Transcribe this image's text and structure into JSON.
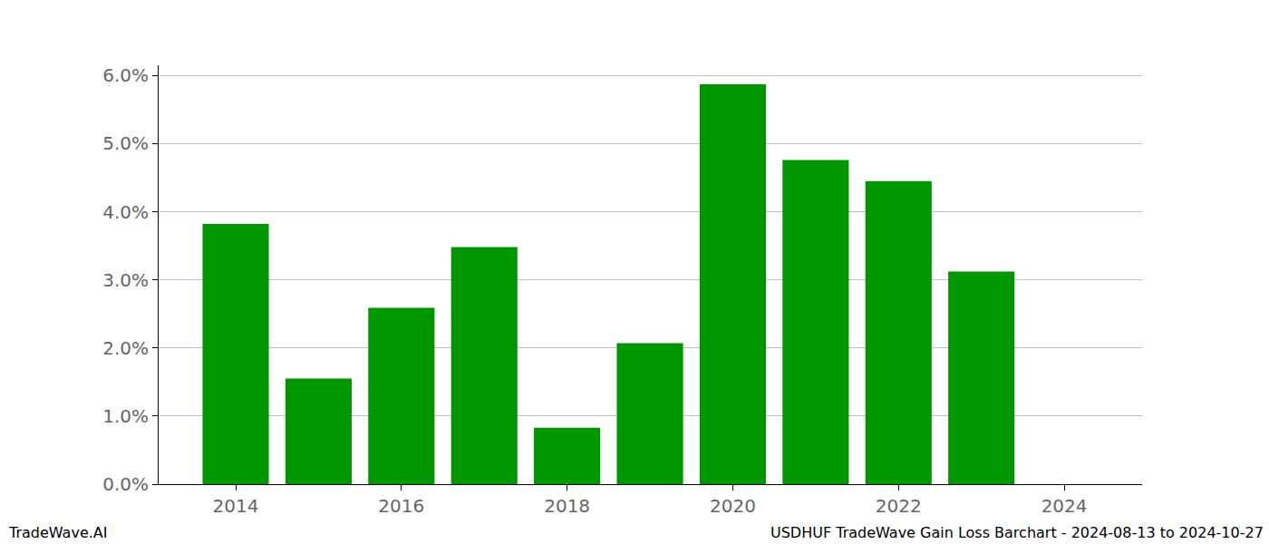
{
  "chart_data": {
    "type": "bar",
    "x": [
      2014,
      2015,
      2016,
      2017,
      2018,
      2019,
      2020,
      2021,
      2022,
      2023
    ],
    "values": [
      3.82,
      1.55,
      2.59,
      3.48,
      0.83,
      2.07,
      5.87,
      4.76,
      4.45,
      3.12
    ],
    "color": "#009600",
    "xlim": [
      2013.07,
      2024.94
    ],
    "xticks": [
      2014,
      2016,
      2018,
      2020,
      2022,
      2024
    ],
    "ylim": [
      0,
      6.15
    ],
    "yticks": [
      {
        "value": 0,
        "label": "0.0%"
      },
      {
        "value": 1,
        "label": "1.0%"
      },
      {
        "value": 2,
        "label": "2.0%"
      },
      {
        "value": 3,
        "label": "3.0%"
      },
      {
        "value": 4,
        "label": "4.0%"
      },
      {
        "value": 5,
        "label": "5.0%"
      },
      {
        "value": 6,
        "label": "6.0%"
      }
    ],
    "grid": true,
    "annotations": [
      "TradeWave.AI",
      "USDHUF TradeWave Gain Loss Barchart - 2024-08-13 to 2024-10-27"
    ]
  }
}
